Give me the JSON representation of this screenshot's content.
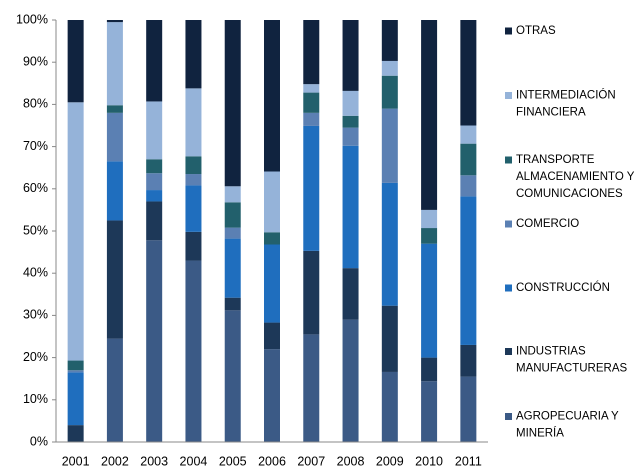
{
  "chart_data": {
    "type": "stacked_bar",
    "categories": [
      "2001",
      "2002",
      "2003",
      "2004",
      "2005",
      "2006",
      "2007",
      "2008",
      "2009",
      "2010",
      "2011"
    ],
    "series": [
      {
        "name": "AGROPECUARIA Y MINERÍA",
        "color": "#3b5a86",
        "values": [
          0,
          24.5,
          47.8,
          43,
          31.2,
          22,
          25.5,
          29,
          16.6,
          14.4,
          15.5
        ]
      },
      {
        "name": "INDUSTRIAS MANUFACTURERAS",
        "color": "#1d3858",
        "values": [
          4,
          28,
          9.2,
          6.8,
          3,
          6.3,
          19.8,
          12.2,
          15.7,
          5.6,
          7.5
        ]
      },
      {
        "name": "CONSTRUCCIÓN",
        "color": "#1f6ebe",
        "values": [
          12.5,
          14,
          2.7,
          11,
          14,
          18.5,
          29.6,
          29,
          29.1,
          27,
          35.2
        ]
      },
      {
        "name": "COMERCIO",
        "color": "#5b80b3",
        "values": [
          0.5,
          11.5,
          4,
          2.7,
          2.6,
          0,
          3.1,
          4.3,
          17.6,
          0,
          5
        ]
      },
      {
        "name": "TRANSPORTE ALMACENAMIENTO Y COMUNICACIONES",
        "color": "#22606c",
        "values": [
          2.3,
          1.8,
          3.3,
          4.2,
          6,
          2.9,
          4.8,
          2.8,
          7.8,
          3.7,
          7.5
        ]
      },
      {
        "name": "INTERMEDIACIÓN FINANCIERA",
        "color": "#95b3d9",
        "values": [
          61.2,
          19.7,
          13.7,
          16.1,
          3.8,
          14.4,
          2,
          5.9,
          3.5,
          4.3,
          4.3
        ]
      },
      {
        "name": "OTRAS",
        "color": "#10233f",
        "values": [
          19.5,
          0.5,
          19.3,
          16.2,
          39.4,
          35.9,
          15.2,
          16.8,
          9.7,
          45,
          25
        ]
      }
    ],
    "ylim": [
      0,
      100
    ],
    "yticks": [
      {
        "value": 0,
        "label": "0%"
      },
      {
        "value": 10,
        "label": "10%"
      },
      {
        "value": 20,
        "label": "20%"
      },
      {
        "value": 30,
        "label": "30%"
      },
      {
        "value": 40,
        "label": "40%"
      },
      {
        "value": 50,
        "label": "50%"
      },
      {
        "value": 60,
        "label": "60%"
      },
      {
        "value": 70,
        "label": "70%"
      },
      {
        "value": 80,
        "label": "80%"
      },
      {
        "value": 90,
        "label": "90%"
      },
      {
        "value": 100,
        "label": "100%"
      }
    ],
    "grid": false,
    "legend": "right"
  }
}
